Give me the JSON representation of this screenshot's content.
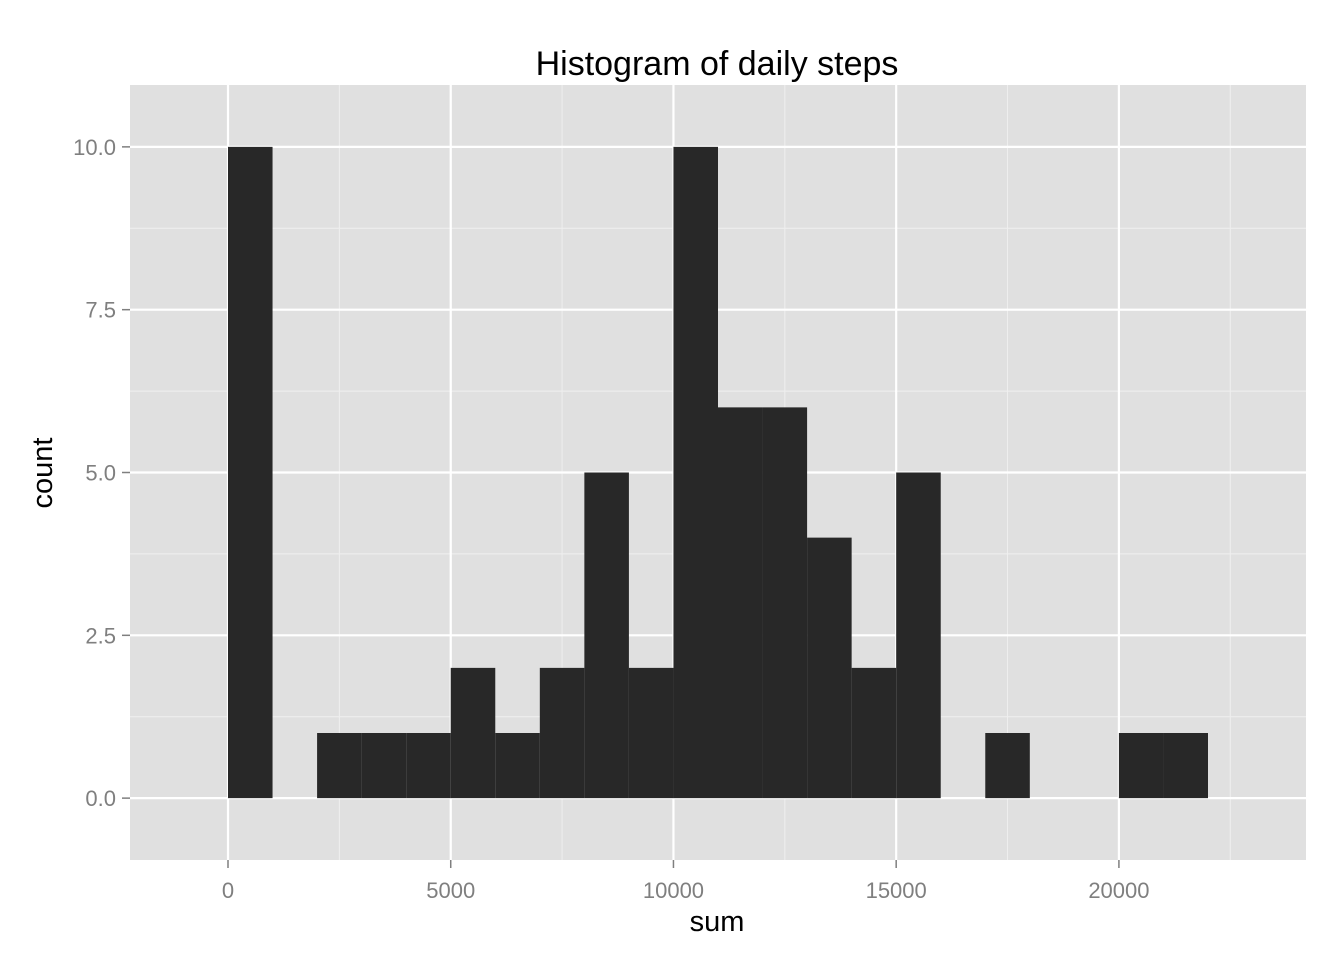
{
  "chart_data": {
    "type": "bar",
    "title": "Histogram of daily steps",
    "xlabel": "sum",
    "ylabel": "count",
    "xlim": [
      -2200,
      24200
    ],
    "ylim": [
      -0.95,
      10.95
    ],
    "x_ticks": [
      0,
      5000,
      10000,
      15000,
      20000
    ],
    "x_tick_labels": [
      "0",
      "5000",
      "10000",
      "15000",
      "20000"
    ],
    "y_ticks": [
      0,
      2.5,
      5,
      7.5,
      10
    ],
    "y_tick_labels": [
      "0.0",
      "2.5",
      "5.0",
      "7.5",
      "10.0"
    ],
    "bin_width": 1000,
    "bins": [
      {
        "start": 0,
        "end": 1000,
        "count": 10
      },
      {
        "start": 1000,
        "end": 2000,
        "count": 0
      },
      {
        "start": 2000,
        "end": 3000,
        "count": 1
      },
      {
        "start": 3000,
        "end": 4000,
        "count": 1
      },
      {
        "start": 4000,
        "end": 5000,
        "count": 1
      },
      {
        "start": 5000,
        "end": 6000,
        "count": 2
      },
      {
        "start": 6000,
        "end": 7000,
        "count": 1
      },
      {
        "start": 7000,
        "end": 8000,
        "count": 2
      },
      {
        "start": 8000,
        "end": 9000,
        "count": 5
      },
      {
        "start": 9000,
        "end": 10000,
        "count": 2
      },
      {
        "start": 10000,
        "end": 11000,
        "count": 10
      },
      {
        "start": 11000,
        "end": 12000,
        "count": 6
      },
      {
        "start": 12000,
        "end": 13000,
        "count": 6
      },
      {
        "start": 13000,
        "end": 14000,
        "count": 4
      },
      {
        "start": 14000,
        "end": 15000,
        "count": 2
      },
      {
        "start": 15000,
        "end": 16000,
        "count": 5
      },
      {
        "start": 16000,
        "end": 17000,
        "count": 0
      },
      {
        "start": 17000,
        "end": 18000,
        "count": 1
      },
      {
        "start": 18000,
        "end": 19000,
        "count": 0
      },
      {
        "start": 19000,
        "end": 20000,
        "count": 0
      },
      {
        "start": 20000,
        "end": 21000,
        "count": 1
      },
      {
        "start": 21000,
        "end": 22000,
        "count": 1
      }
    ],
    "grid": true,
    "legend": "none",
    "colors": {
      "bar": "#282828",
      "panel": "#e0e0e0",
      "grid_major": "#ffffff",
      "grid_minor": "#efefef",
      "tick": "#7f7f7f"
    }
  }
}
